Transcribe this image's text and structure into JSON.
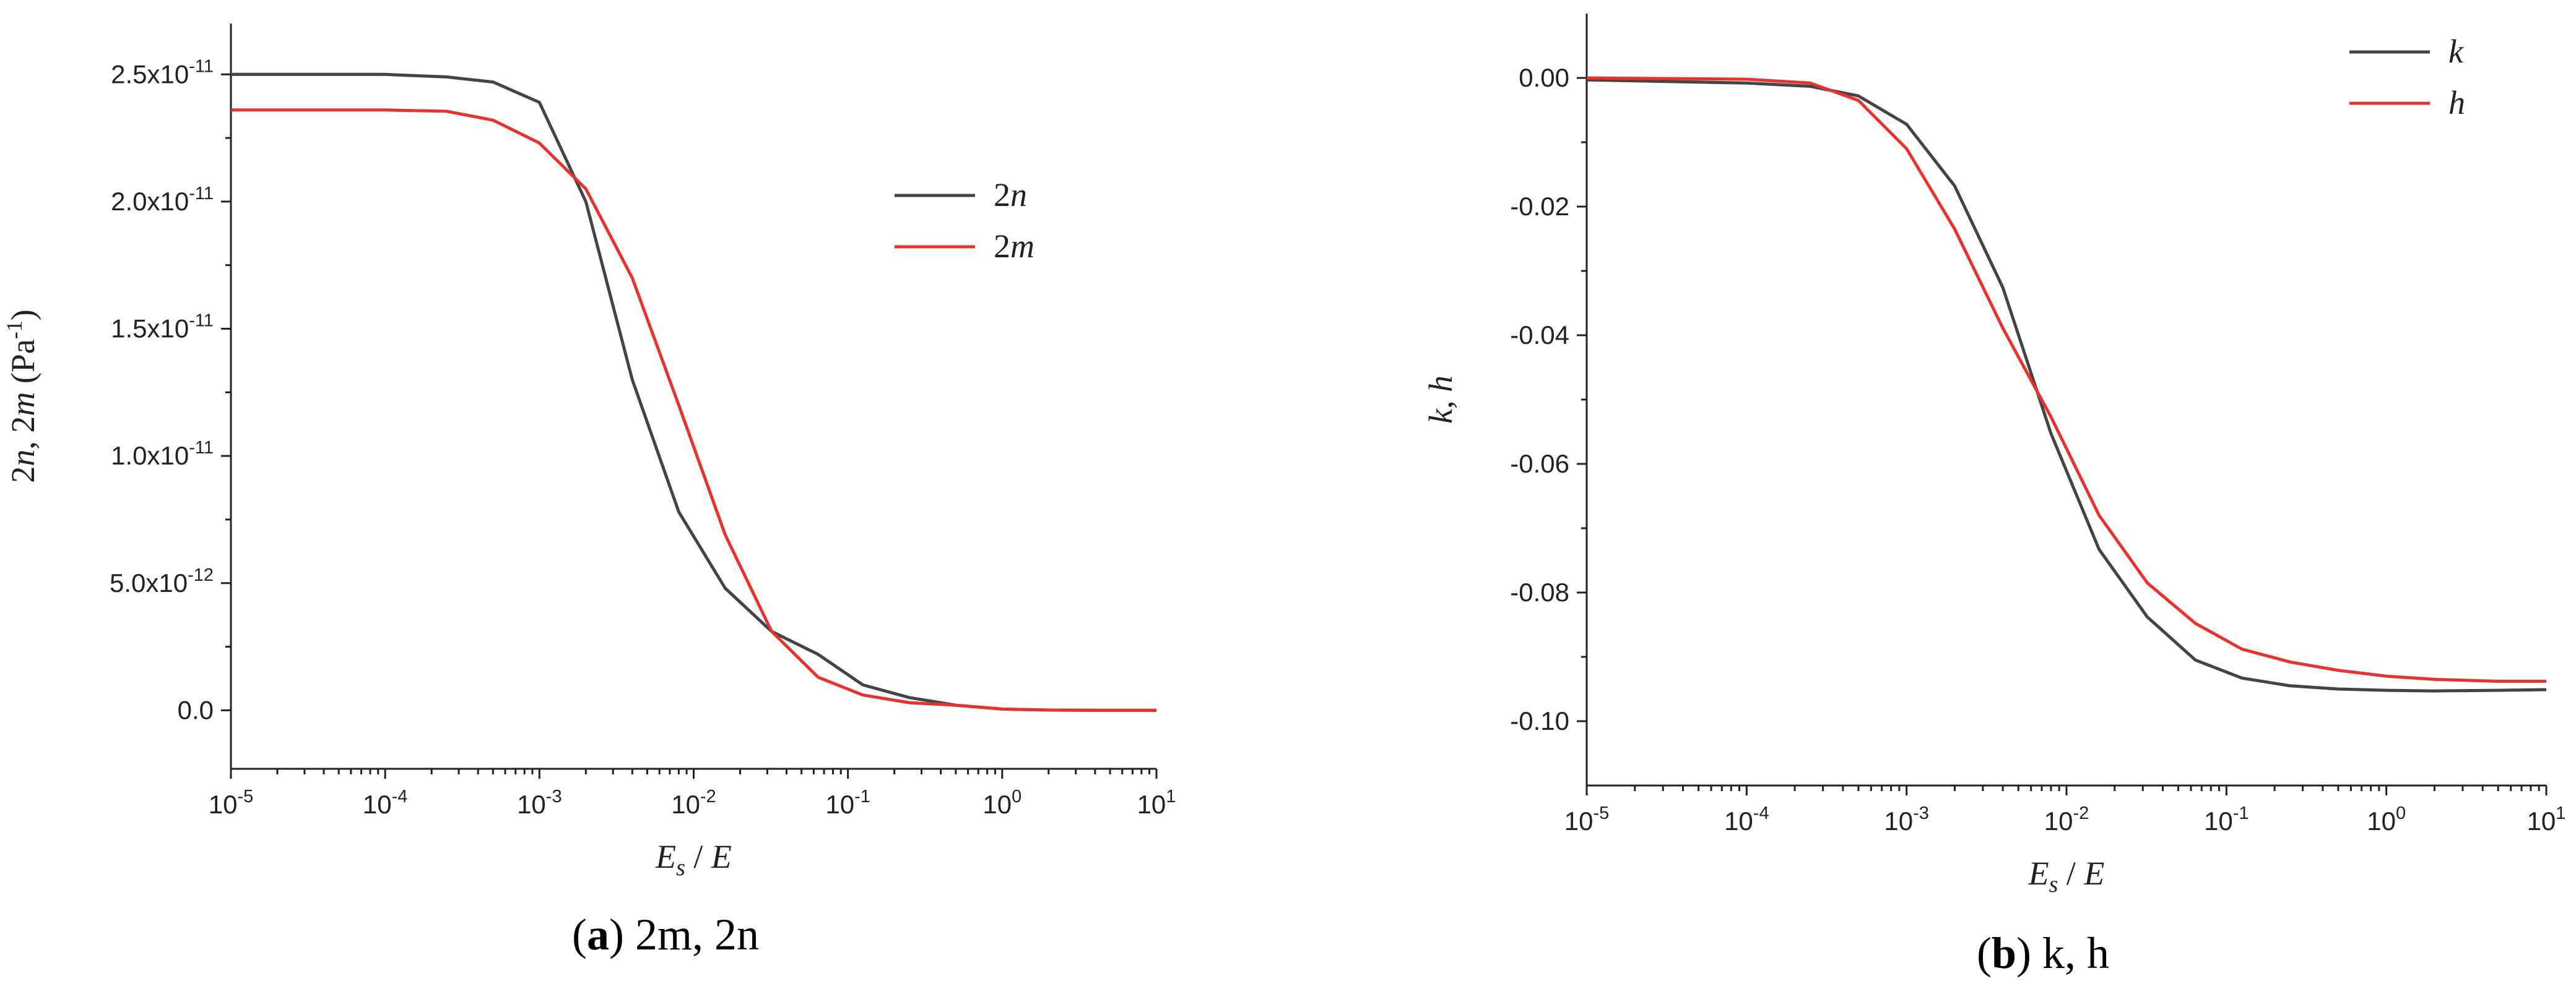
{
  "chart_data": [
    {
      "type": "line",
      "id": "a",
      "caption": {
        "label": "a",
        "text": " 2m, 2n"
      },
      "xlabel": "E_s / E",
      "ylabel": "2n, 2m (Pa^-1)",
      "xscale": "log",
      "xlim": [
        1e-05,
        10
      ],
      "ylim": [
        -2.3e-12,
        2.7e-11
      ],
      "xticks": [
        {
          "base": "10",
          "exp": "-5"
        },
        {
          "base": "10",
          "exp": "-4"
        },
        {
          "base": "10",
          "exp": "-3"
        },
        {
          "base": "10",
          "exp": "-2"
        },
        {
          "base": "10",
          "exp": "-1"
        },
        {
          "base": "10",
          "exp": "0"
        },
        {
          "base": "10",
          "exp": "1"
        }
      ],
      "yticks": [
        {
          "value": 0,
          "mant": "0.0",
          "exp": ""
        },
        {
          "value": 5e-12,
          "mant": "5.0x10",
          "exp": "-12"
        },
        {
          "value": 1e-11,
          "mant": "1.0x10",
          "exp": "-11"
        },
        {
          "value": 1.5e-11,
          "mant": "1.5x10",
          "exp": "-11"
        },
        {
          "value": 2e-11,
          "mant": "2.0x10",
          "exp": "-11"
        },
        {
          "value": 2.5e-11,
          "mant": "2.5x10",
          "exp": "-11"
        }
      ],
      "legend_position": "top-right",
      "series": [
        {
          "name": "2n",
          "color": "#444444",
          "x": [
            1e-05,
            0.0001,
            0.00025,
            0.0005,
            0.001,
            0.002,
            0.004,
            0.008,
            0.016,
            0.032,
            0.064,
            0.125,
            0.25,
            0.5,
            1,
            2,
            5,
            10
          ],
          "y": [
            2.5e-11,
            2.5e-11,
            2.49e-11,
            2.47e-11,
            2.39e-11,
            2e-11,
            1.3e-11,
            7.8e-12,
            4.8e-12,
            3.1e-12,
            2.2e-12,
            1e-12,
            5e-13,
            2e-13,
            5e-14,
            1e-14,
            0,
            0
          ]
        },
        {
          "name": "2m",
          "color": "#e8322e",
          "x": [
            1e-05,
            0.0001,
            0.00025,
            0.0005,
            0.001,
            0.002,
            0.004,
            0.008,
            0.016,
            0.032,
            0.064,
            0.125,
            0.25,
            0.5,
            1,
            2,
            5,
            10
          ],
          "y": [
            2.36e-11,
            2.36e-11,
            2.355e-11,
            2.32e-11,
            2.23e-11,
            2.05e-11,
            1.7e-11,
            1.2e-11,
            6.9e-12,
            3.1e-12,
            1.3e-12,
            6e-13,
            3e-13,
            2e-13,
            5e-14,
            1e-14,
            0,
            0
          ]
        }
      ]
    },
    {
      "type": "line",
      "id": "b",
      "caption": {
        "label": "b",
        "text": " k, h"
      },
      "xlabel": "E_s / E",
      "ylabel": "k, h",
      "xscale": "log",
      "xlim": [
        1e-05,
        10
      ],
      "ylim": [
        -0.11,
        0.01
      ],
      "xticks": [
        {
          "base": "10",
          "exp": "-5"
        },
        {
          "base": "10",
          "exp": "-4"
        },
        {
          "base": "10",
          "exp": "-3"
        },
        {
          "base": "10",
          "exp": "-2"
        },
        {
          "base": "10",
          "exp": "-1"
        },
        {
          "base": "10",
          "exp": "0"
        },
        {
          "base": "10",
          "exp": "1"
        }
      ],
      "yticks": [
        {
          "value": 0,
          "mant": "0.00",
          "exp": ""
        },
        {
          "value": -0.02,
          "mant": "-0.02",
          "exp": ""
        },
        {
          "value": -0.04,
          "mant": "-0.04",
          "exp": ""
        },
        {
          "value": -0.06,
          "mant": "-0.06",
          "exp": ""
        },
        {
          "value": -0.08,
          "mant": "-0.08",
          "exp": ""
        },
        {
          "value": -0.1,
          "mant": "-0.10",
          "exp": ""
        }
      ],
      "legend_position": "top-right",
      "series": [
        {
          "name": "k",
          "color": "#444444",
          "x": [
            1e-05,
            0.0001,
            0.00025,
            0.0005,
            0.001,
            0.002,
            0.004,
            0.008,
            0.016,
            0.032,
            0.064,
            0.125,
            0.25,
            0.5,
            1,
            2,
            5,
            10
          ],
          "y": [
            -0.0003,
            -0.0008,
            -0.0013,
            -0.0028,
            -0.0072,
            -0.0168,
            -0.0326,
            -0.0553,
            -0.0733,
            -0.0838,
            -0.0905,
            -0.0933,
            -0.0945,
            -0.095,
            -0.0952,
            -0.0953,
            -0.0952,
            -0.0951
          ]
        },
        {
          "name": "h",
          "color": "#e8322e",
          "x": [
            1e-05,
            0.0001,
            0.00025,
            0.0005,
            0.001,
            0.002,
            0.004,
            0.008,
            0.016,
            0.032,
            0.064,
            0.125,
            0.25,
            0.5,
            1,
            2,
            5,
            10
          ],
          "y": [
            0,
            -0.0002,
            -0.0008,
            -0.0035,
            -0.011,
            -0.0235,
            -0.0389,
            -0.0527,
            -0.068,
            -0.0785,
            -0.0848,
            -0.0888,
            -0.0908,
            -0.0921,
            -0.093,
            -0.0935,
            -0.0938,
            -0.0938
          ]
        }
      ]
    }
  ]
}
